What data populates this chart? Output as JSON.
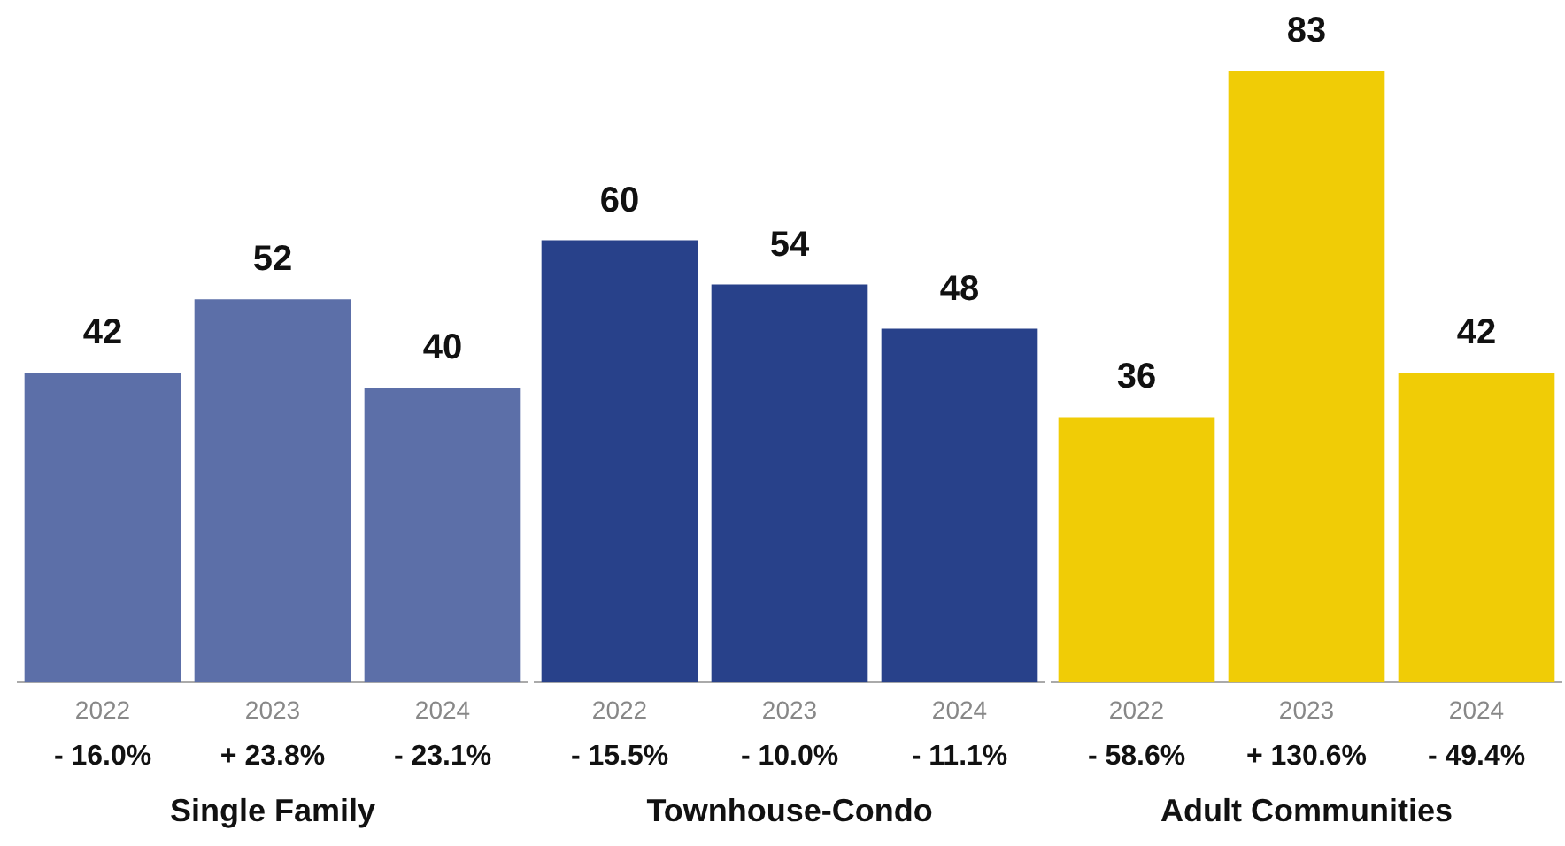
{
  "chart_data": [
    {
      "type": "bar",
      "categories": [
        "2022",
        "2023",
        "2024"
      ],
      "values": [
        42,
        52,
        40
      ],
      "color": "#5c6fa8",
      "data_labels": true,
      "xlabel": "Single Family",
      "grid": false,
      "annotations": [
        "- 16.0%",
        "+ 23.8%",
        "- 23.1%"
      ]
    },
    {
      "type": "bar",
      "categories": [
        "2022",
        "2023",
        "2024"
      ],
      "values": [
        60,
        54,
        48
      ],
      "color": "#28418a",
      "data_labels": true,
      "xlabel": "Townhouse-Condo",
      "grid": false,
      "annotations": [
        "- 15.5%",
        "- 10.0%",
        "- 11.1%"
      ]
    },
    {
      "type": "bar",
      "categories": [
        "2022",
        "2023",
        "2024"
      ],
      "values": [
        36,
        83,
        42
      ],
      "color": "#f0cc06",
      "data_labels": true,
      "xlabel": "Adult Communities",
      "grid": false,
      "annotations": [
        "- 58.6%",
        "+ 130.6%",
        "- 49.4%"
      ]
    }
  ]
}
